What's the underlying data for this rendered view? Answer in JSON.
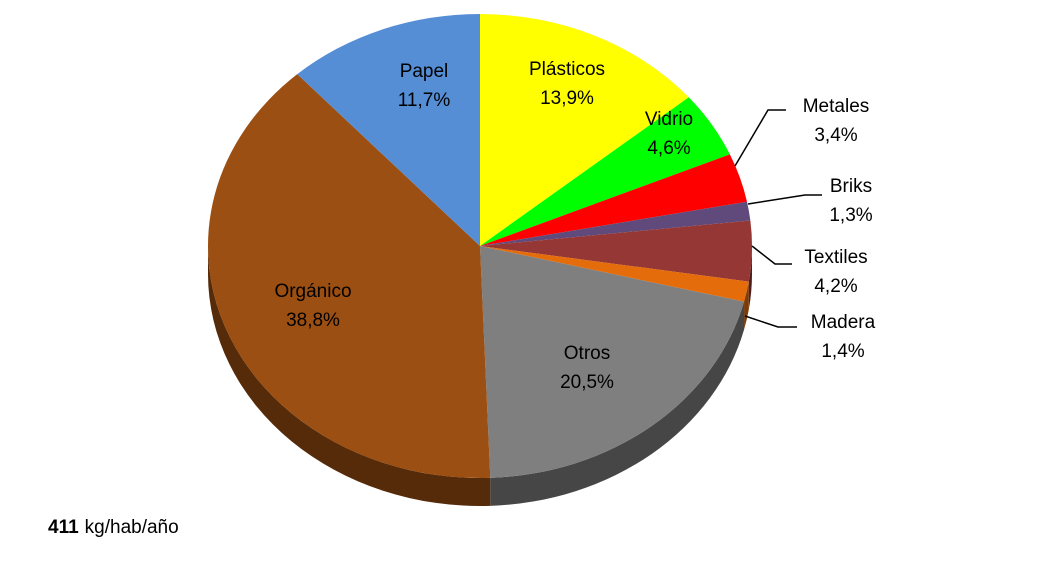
{
  "chart_data": {
    "type": "pie",
    "categories": [
      "Plásticos",
      "Vidrio",
      "Metales",
      "Briks",
      "Textiles",
      "Madera",
      "Otros",
      "Orgánico",
      "Papel"
    ],
    "values": [
      13.9,
      4.6,
      3.4,
      1.3,
      4.2,
      1.4,
      20.5,
      38.8,
      11.7
    ],
    "value_labels": [
      "13,9%",
      "4,6%",
      "3,4%",
      "1,3%",
      "4,2%",
      "1,4%",
      "20,5%",
      "38,8%",
      "11,7%"
    ],
    "colors": [
      "#ffff00",
      "#00ff00",
      "#ff0000",
      "#604a7b",
      "#953735",
      "#e46c0a",
      "#7f7f7f",
      "#9c4f12",
      "#558ed5"
    ],
    "total": 411,
    "total_unit": "kg/hab/año"
  }
}
